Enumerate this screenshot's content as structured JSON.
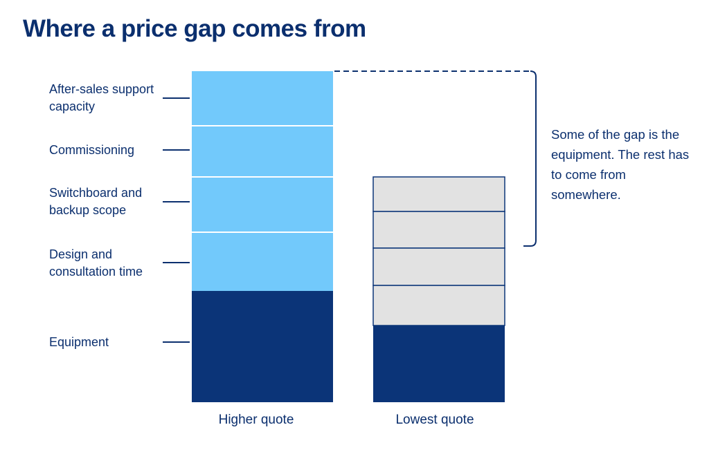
{
  "title": "Where a price gap comes from",
  "higher_quote": {
    "label": "Higher quote",
    "segments": [
      {
        "label": "After-sales support capacity",
        "type": "service"
      },
      {
        "label": "Commissioning",
        "type": "service"
      },
      {
        "label": "Switchboard and backup scope",
        "type": "service"
      },
      {
        "label": "Design and consultation time",
        "type": "service"
      },
      {
        "label": "Equipment",
        "type": "equipment"
      }
    ]
  },
  "lowest_quote": {
    "label": "Lowest quote",
    "segments": 5
  },
  "annotation": "Some of the gap is the equipment. The rest has to come from somewhere.",
  "colors": {
    "title": "#0b2f6e",
    "equipment": "#0b3478",
    "service": "#72c9fb",
    "lowest_stack": "#e2e2e2",
    "text": "#0b2f6e"
  }
}
